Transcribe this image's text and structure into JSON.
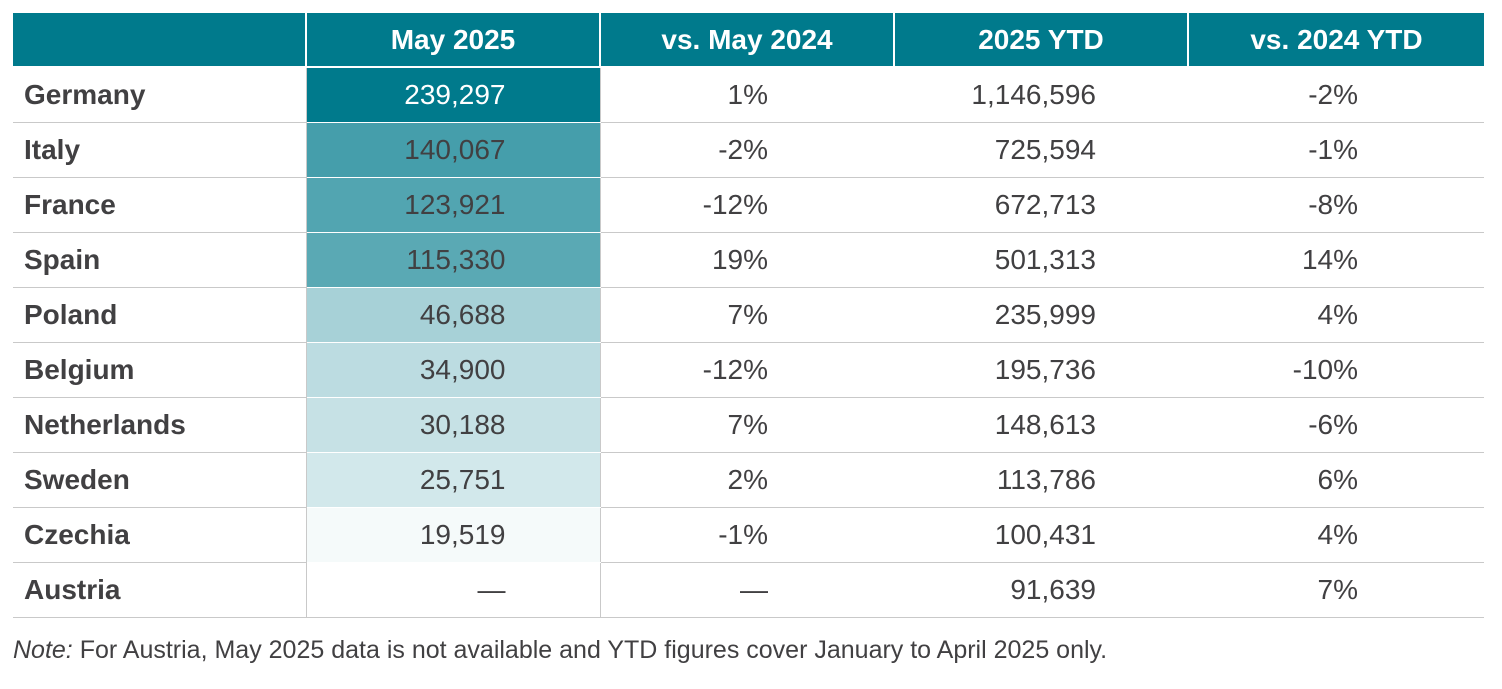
{
  "chart_data": {
    "type": "table",
    "columns": [
      "",
      "May 2025",
      "vs. May 2024",
      "2025 YTD",
      "vs. 2024 YTD"
    ],
    "rows": [
      {
        "country": "Germany",
        "may_2025": "239,297",
        "vs_may_2024": "1%",
        "ytd_2025": "1,146,596",
        "vs_ytd_2024": "-2%",
        "value": 239297
      },
      {
        "country": "Italy",
        "may_2025": "140,067",
        "vs_may_2024": "-2%",
        "ytd_2025": "725,594",
        "vs_ytd_2024": "-1%",
        "value": 140067
      },
      {
        "country": "France",
        "may_2025": "123,921",
        "vs_may_2024": "-12%",
        "ytd_2025": "672,713",
        "vs_ytd_2024": "-8%",
        "value": 123921
      },
      {
        "country": "Spain",
        "may_2025": "115,330",
        "vs_may_2024": "19%",
        "ytd_2025": "501,313",
        "vs_ytd_2024": "14%",
        "value": 115330
      },
      {
        "country": "Poland",
        "may_2025": "46,688",
        "vs_may_2024": "7%",
        "ytd_2025": "235,999",
        "vs_ytd_2024": "4%",
        "value": 46688
      },
      {
        "country": "Belgium",
        "may_2025": "34,900",
        "vs_may_2024": "-12%",
        "ytd_2025": "195,736",
        "vs_ytd_2024": "-10%",
        "value": 34900
      },
      {
        "country": "Netherlands",
        "may_2025": "30,188",
        "vs_may_2024": "7%",
        "ytd_2025": "148,613",
        "vs_ytd_2024": "-6%",
        "value": 30188
      },
      {
        "country": "Sweden",
        "may_2025": "25,751",
        "vs_may_2024": "2%",
        "ytd_2025": "113,786",
        "vs_ytd_2024": "6%",
        "value": 25751
      },
      {
        "country": "Czechia",
        "may_2025": "19,519",
        "vs_may_2024": "-1%",
        "ytd_2025": "100,431",
        "vs_ytd_2024": "4%",
        "value": 19519
      },
      {
        "country": "Austria",
        "may_2025": "—",
        "vs_may_2024": "—",
        "ytd_2025": "91,639",
        "vs_ytd_2024": "7%",
        "value": null
      }
    ],
    "heatmap_column": "May 2025",
    "heatmap_colors": {
      "high": "#007a8c",
      "low": "#ffffff"
    },
    "header_color": "#007a8c"
  },
  "note": {
    "label": "Note:",
    "text": " For Austria, May 2025 data is not available and YTD figures cover January to April 2025 only."
  }
}
